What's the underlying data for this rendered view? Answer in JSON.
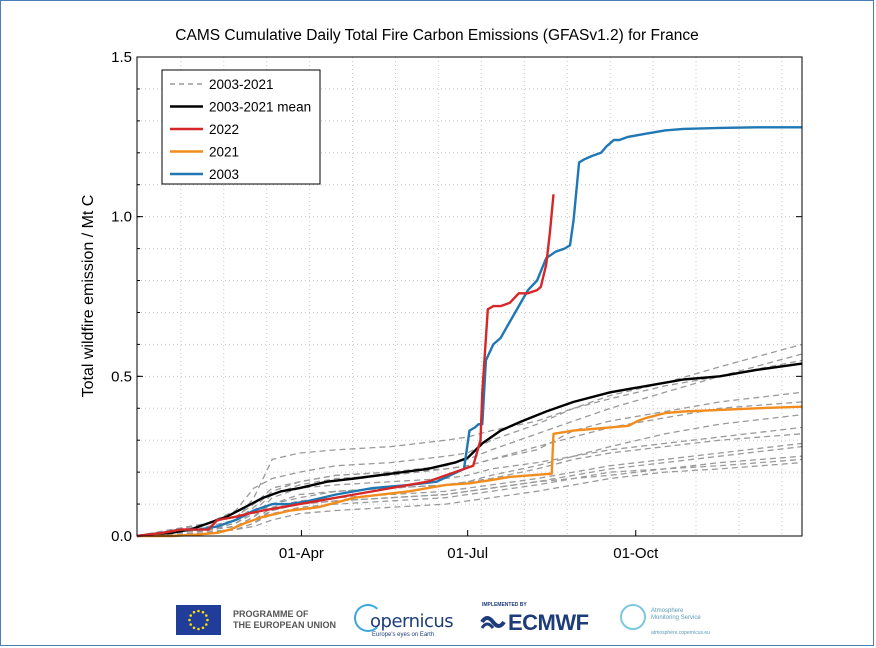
{
  "chart_data": {
    "type": "line",
    "title": "CAMS Cumulative Daily Total Fire Carbon Emissions (GFASv1.2) for France",
    "xlabel": "",
    "ylabel": "Total wildfire emission / Mt C",
    "x_unit": "day of year",
    "xlim": [
      1,
      365
    ],
    "ylim": [
      0,
      1.5
    ],
    "x_ticks": [
      {
        "day": 91,
        "label": "01-Apr"
      },
      {
        "day": 182,
        "label": "01-Jul"
      },
      {
        "day": 274,
        "label": "01-Oct"
      }
    ],
    "y_ticks": [
      {
        "value": 0,
        "label": "0.0"
      },
      {
        "value": 0.5,
        "label": "0.5"
      },
      {
        "value": 1.0,
        "label": "1.0"
      },
      {
        "value": 1.5,
        "label": "1.5"
      }
    ],
    "grid": true,
    "legend": {
      "placement": "top-left",
      "entries": [
        {
          "label": "2003-2021",
          "color": "#9a9a9a",
          "style": "dashed"
        },
        {
          "label": "2003-2021 mean",
          "color": "#000000",
          "style": "solid"
        },
        {
          "label": "2022",
          "color": "#d62728",
          "style": "solid"
        },
        {
          "label": "2021",
          "color": "#f28c1c",
          "style": "solid"
        },
        {
          "label": "2003",
          "color": "#1f77b4",
          "style": "solid"
        }
      ]
    },
    "series": [
      {
        "name": "2003-2021",
        "color": "#9a9a9a",
        "style": "dashed",
        "x": [
          1,
          20,
          40,
          55,
          65,
          75,
          90,
          110,
          140,
          170,
          182,
          195,
          220,
          240,
          260,
          290,
          320,
          365
        ],
        "values": [
          0,
          0.01,
          0.02,
          0.05,
          0.12,
          0.24,
          0.26,
          0.27,
          0.28,
          0.3,
          0.31,
          0.33,
          0.36,
          0.4,
          0.43,
          0.47,
          0.5,
          0.55
        ]
      },
      {
        "name": "2003-2021",
        "color": "#9a9a9a",
        "style": "dashed",
        "x": [
          1,
          20,
          40,
          55,
          65,
          75,
          90,
          110,
          140,
          170,
          182,
          195,
          220,
          240,
          260,
          290,
          320,
          365
        ],
        "values": [
          0,
          0.01,
          0.02,
          0.03,
          0.06,
          0.12,
          0.15,
          0.16,
          0.17,
          0.18,
          0.19,
          0.21,
          0.23,
          0.25,
          0.27,
          0.29,
          0.31,
          0.34
        ]
      },
      {
        "name": "2003-2021",
        "color": "#9a9a9a",
        "style": "dashed",
        "x": [
          1,
          20,
          40,
          55,
          65,
          75,
          90,
          110,
          140,
          170,
          182,
          195,
          220,
          240,
          260,
          290,
          320,
          365
        ],
        "values": [
          0,
          0.01,
          0.015,
          0.02,
          0.04,
          0.08,
          0.1,
          0.11,
          0.12,
          0.13,
          0.14,
          0.15,
          0.17,
          0.19,
          0.21,
          0.23,
          0.25,
          0.28
        ]
      },
      {
        "name": "2003-2021",
        "color": "#9a9a9a",
        "style": "dashed",
        "x": [
          1,
          20,
          40,
          55,
          65,
          75,
          90,
          110,
          140,
          170,
          182,
          195,
          220,
          240,
          260,
          290,
          320,
          365
        ],
        "values": [
          0,
          0.005,
          0.01,
          0.02,
          0.04,
          0.07,
          0.09,
          0.1,
          0.11,
          0.12,
          0.13,
          0.14,
          0.16,
          0.18,
          0.19,
          0.21,
          0.22,
          0.24
        ]
      },
      {
        "name": "2003-2021",
        "color": "#9a9a9a",
        "style": "dashed",
        "x": [
          1,
          20,
          40,
          55,
          65,
          75,
          90,
          110,
          140,
          170,
          182,
          195,
          220,
          240,
          260,
          290,
          320,
          365
        ],
        "values": [
          0,
          0.01,
          0.02,
          0.04,
          0.08,
          0.13,
          0.16,
          0.18,
          0.19,
          0.21,
          0.22,
          0.24,
          0.28,
          0.31,
          0.34,
          0.37,
          0.4,
          0.42
        ]
      },
      {
        "name": "2003-2021",
        "color": "#9a9a9a",
        "style": "dashed",
        "x": [
          1,
          20,
          40,
          55,
          65,
          75,
          90,
          110,
          140,
          170,
          182,
          195,
          220,
          240,
          260,
          290,
          320,
          365
        ],
        "values": [
          0,
          0.01,
          0.02,
          0.03,
          0.05,
          0.09,
          0.11,
          0.12,
          0.13,
          0.14,
          0.15,
          0.16,
          0.18,
          0.2,
          0.22,
          0.24,
          0.26,
          0.29
        ]
      },
      {
        "name": "2003-2021",
        "color": "#9a9a9a",
        "style": "dashed",
        "x": [
          1,
          20,
          40,
          55,
          65,
          75,
          90,
          110,
          140,
          170,
          182,
          195,
          220,
          240,
          260,
          290,
          320,
          365
        ],
        "values": [
          0,
          0.02,
          0.04,
          0.06,
          0.1,
          0.15,
          0.17,
          0.19,
          0.2,
          0.22,
          0.24,
          0.27,
          0.32,
          0.36,
          0.4,
          0.45,
          0.5,
          0.57
        ]
      },
      {
        "name": "2003-2021",
        "color": "#9a9a9a",
        "style": "dashed",
        "x": [
          1,
          20,
          40,
          55,
          65,
          75,
          90,
          110,
          140,
          170,
          182,
          195,
          220,
          240,
          260,
          290,
          320,
          365
        ],
        "values": [
          0,
          0.01,
          0.02,
          0.03,
          0.05,
          0.08,
          0.1,
          0.11,
          0.12,
          0.13,
          0.14,
          0.15,
          0.17,
          0.18,
          0.2,
          0.21,
          0.23,
          0.25
        ]
      },
      {
        "name": "2003-2021",
        "color": "#9a9a9a",
        "style": "dashed",
        "x": [
          1,
          20,
          40,
          55,
          65,
          75,
          90,
          110,
          140,
          170,
          182,
          195,
          220,
          240,
          260,
          290,
          320,
          365
        ],
        "values": [
          0,
          0.02,
          0.03,
          0.05,
          0.09,
          0.14,
          0.17,
          0.19,
          0.2,
          0.21,
          0.22,
          0.24,
          0.27,
          0.33,
          0.36,
          0.39,
          0.42,
          0.45
        ]
      },
      {
        "name": "2003-2021",
        "color": "#9a9a9a",
        "style": "dashed",
        "x": [
          1,
          20,
          40,
          55,
          65,
          75,
          90,
          110,
          140,
          170,
          182,
          195,
          220,
          240,
          260,
          290,
          320,
          365
        ],
        "values": [
          0,
          0.01,
          0.02,
          0.04,
          0.07,
          0.1,
          0.12,
          0.14,
          0.15,
          0.16,
          0.17,
          0.19,
          0.22,
          0.25,
          0.28,
          0.32,
          0.35,
          0.38
        ]
      },
      {
        "name": "2003-2021",
        "color": "#9a9a9a",
        "style": "dashed",
        "x": [
          1,
          20,
          40,
          55,
          65,
          75,
          90,
          110,
          140,
          170,
          182,
          195,
          220,
          240,
          260,
          290,
          320,
          365
        ],
        "values": [
          0,
          0.02,
          0.04,
          0.08,
          0.15,
          0.18,
          0.2,
          0.22,
          0.23,
          0.25,
          0.26,
          0.3,
          0.35,
          0.4,
          0.44,
          0.48,
          0.53,
          0.6
        ]
      },
      {
        "name": "2003-2021",
        "color": "#9a9a9a",
        "style": "dashed",
        "x": [
          1,
          20,
          40,
          55,
          65,
          75,
          90,
          110,
          140,
          170,
          182,
          195,
          220,
          240,
          260,
          290,
          320,
          365
        ],
        "values": [
          0,
          0.005,
          0.01,
          0.02,
          0.03,
          0.05,
          0.07,
          0.08,
          0.09,
          0.1,
          0.11,
          0.12,
          0.14,
          0.16,
          0.18,
          0.2,
          0.21,
          0.23
        ]
      },
      {
        "name": "2003-2021",
        "color": "#9a9a9a",
        "style": "dashed",
        "x": [
          1,
          20,
          40,
          55,
          65,
          75,
          90,
          110,
          140,
          170,
          182,
          195,
          220,
          240,
          260,
          290,
          320,
          365
        ],
        "values": [
          0,
          0.01,
          0.02,
          0.03,
          0.06,
          0.1,
          0.13,
          0.14,
          0.15,
          0.16,
          0.17,
          0.18,
          0.21,
          0.24,
          0.26,
          0.28,
          0.3,
          0.32
        ]
      },
      {
        "name": "2003-2021 mean",
        "color": "#000000",
        "style": "solid",
        "x": [
          1,
          20,
          30,
          40,
          50,
          60,
          70,
          80,
          90,
          105,
          120,
          140,
          160,
          175,
          182,
          190,
          200,
          212,
          225,
          240,
          260,
          280,
          300,
          320,
          340,
          365
        ],
        "values": [
          0,
          0.01,
          0.02,
          0.04,
          0.06,
          0.09,
          0.12,
          0.14,
          0.15,
          0.17,
          0.18,
          0.195,
          0.21,
          0.23,
          0.245,
          0.29,
          0.33,
          0.36,
          0.39,
          0.42,
          0.45,
          0.47,
          0.49,
          0.5,
          0.52,
          0.54
        ]
      },
      {
        "name": "2021",
        "color": "#f28c1c",
        "style": "solid",
        "x": [
          1,
          20,
          35,
          45,
          52,
          60,
          70,
          85,
          100,
          120,
          150,
          170,
          183,
          195,
          205,
          228,
          229,
          240,
          250,
          260,
          270,
          275,
          280,
          290,
          300,
          320,
          340,
          365
        ],
        "values": [
          0,
          0.0,
          0.005,
          0.01,
          0.02,
          0.04,
          0.06,
          0.08,
          0.09,
          0.12,
          0.14,
          0.16,
          0.165,
          0.175,
          0.185,
          0.195,
          0.32,
          0.33,
          0.335,
          0.34,
          0.345,
          0.36,
          0.37,
          0.385,
          0.39,
          0.395,
          0.4,
          0.405
        ]
      },
      {
        "name": "2003",
        "color": "#1f77b4",
        "style": "solid",
        "x": [
          1,
          15,
          25,
          35,
          45,
          55,
          65,
          75,
          85,
          95,
          110,
          130,
          150,
          165,
          180,
          183,
          186,
          188,
          190,
          192,
          196,
          200,
          205,
          210,
          215,
          220,
          225,
          230,
          235,
          238,
          240,
          243,
          246,
          250,
          255,
          258,
          260,
          262,
          265,
          270,
          280,
          290,
          300,
          320,
          340,
          365
        ],
        "values": [
          0,
          0.01,
          0.02,
          0.02,
          0.03,
          0.05,
          0.08,
          0.1,
          0.1,
          0.11,
          0.13,
          0.15,
          0.16,
          0.17,
          0.21,
          0.33,
          0.34,
          0.35,
          0.35,
          0.55,
          0.6,
          0.62,
          0.67,
          0.72,
          0.77,
          0.8,
          0.87,
          0.89,
          0.9,
          0.91,
          0.99,
          1.17,
          1.18,
          1.19,
          1.2,
          1.22,
          1.23,
          1.24,
          1.24,
          1.25,
          1.26,
          1.27,
          1.275,
          1.278,
          1.28,
          1.28
        ]
      },
      {
        "name": "2022",
        "color": "#d62728",
        "style": "solid",
        "x": [
          1,
          15,
          25,
          35,
          40,
          45,
          55,
          62,
          70,
          80,
          90,
          100,
          120,
          140,
          160,
          175,
          185,
          189,
          190,
          193,
          196,
          200,
          205,
          210,
          215,
          220,
          222,
          225,
          227,
          229
        ],
        "values": [
          0,
          0.01,
          0.02,
          0.02,
          0.02,
          0.05,
          0.06,
          0.07,
          0.08,
          0.09,
          0.1,
          0.11,
          0.13,
          0.15,
          0.17,
          0.2,
          0.22,
          0.3,
          0.45,
          0.71,
          0.72,
          0.72,
          0.73,
          0.76,
          0.76,
          0.77,
          0.78,
          0.85,
          0.95,
          1.07
        ]
      }
    ]
  },
  "footer": {
    "eu_text": "PROGRAMME OF\nTHE EUROPEAN UNION",
    "copernicus_name": "opernicus",
    "copernicus_tagline": "Europe's eyes on Earth",
    "ecmwf_implemented": "IMPLEMENTED BY",
    "ecmwf_name": "ECMWF",
    "atmosphere_text": "Atmosphere\nMonitoring Service",
    "atmosphere_url": "atmosphere.copernicus.eu"
  }
}
